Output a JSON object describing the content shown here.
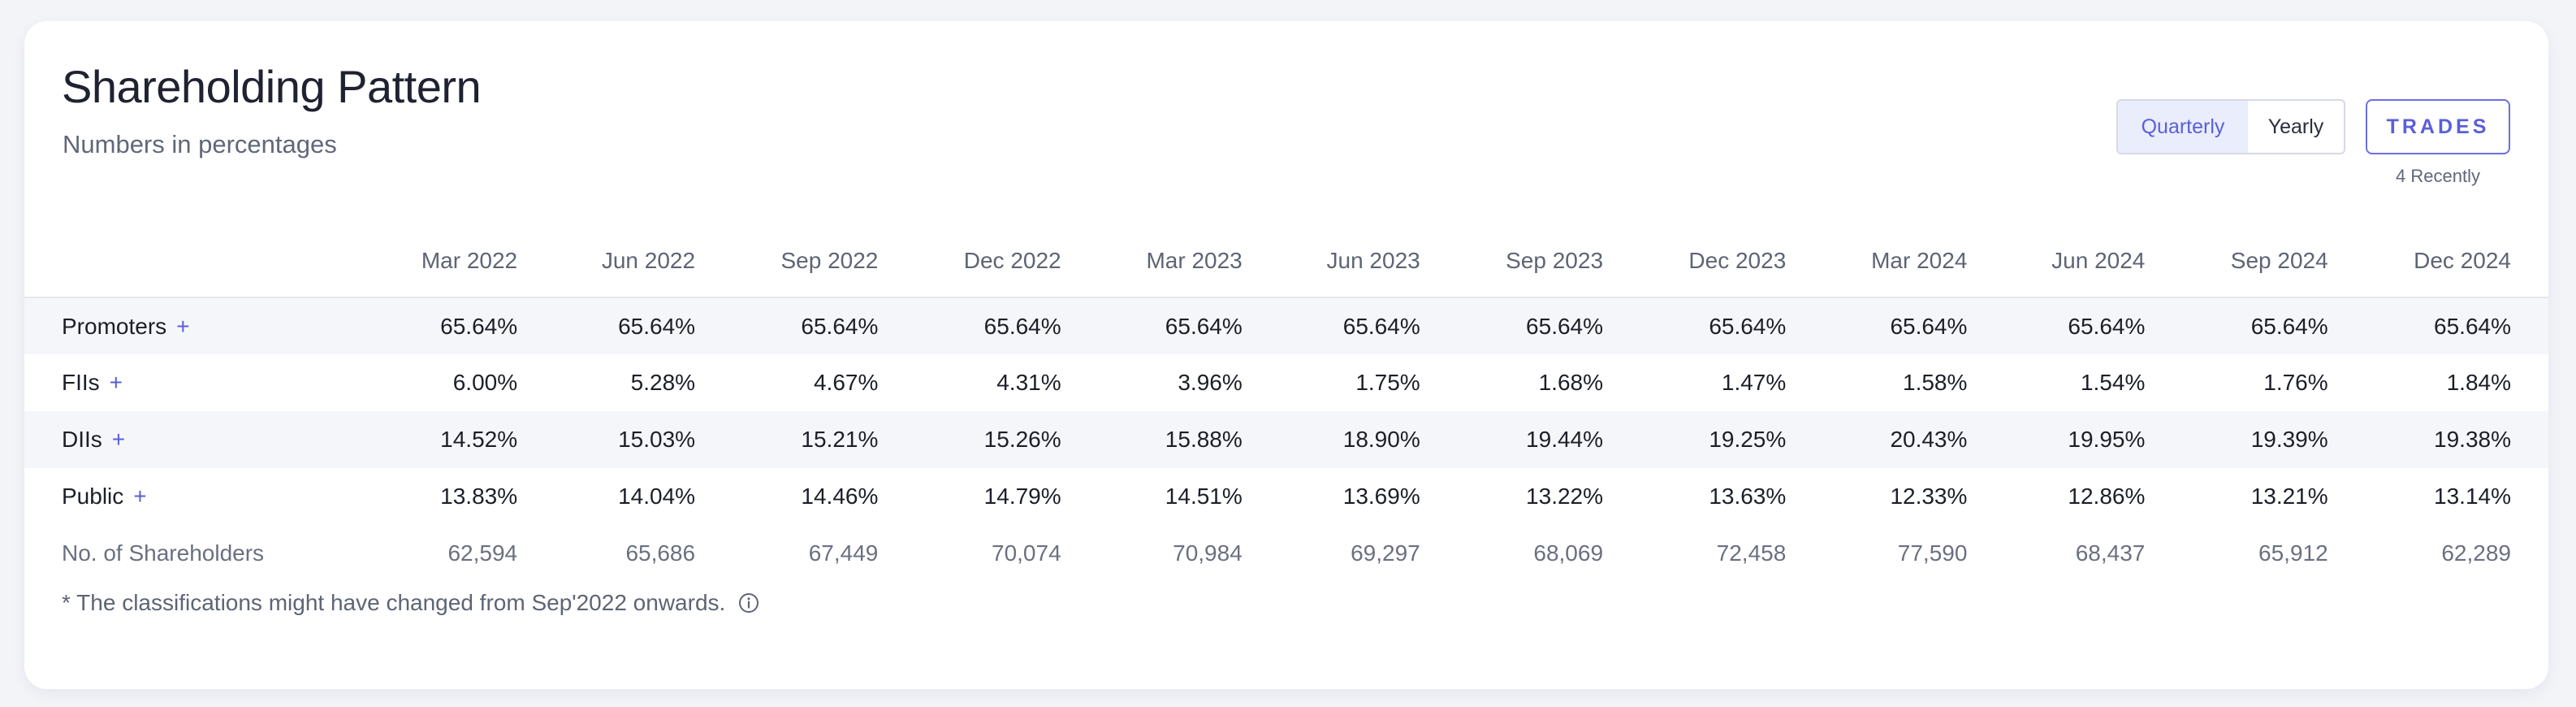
{
  "title": "Shareholding Pattern",
  "subtitle": "Numbers in percentages",
  "toggle": {
    "quarterly": "Quarterly",
    "yearly": "Yearly"
  },
  "trades": {
    "label": "TRADES",
    "note": "4 Recently"
  },
  "columns": [
    "Mar 2022",
    "Jun 2022",
    "Sep 2022",
    "Dec 2022",
    "Mar 2023",
    "Jun 2023",
    "Sep 2023",
    "Dec 2023",
    "Mar 2024",
    "Jun 2024",
    "Sep 2024",
    "Dec 2024"
  ],
  "rows": [
    {
      "label": "Promoters",
      "expandable": true,
      "values": [
        "65.64%",
        "65.64%",
        "65.64%",
        "65.64%",
        "65.64%",
        "65.64%",
        "65.64%",
        "65.64%",
        "65.64%",
        "65.64%",
        "65.64%",
        "65.64%"
      ]
    },
    {
      "label": "FIIs",
      "expandable": true,
      "values": [
        "6.00%",
        "5.28%",
        "4.67%",
        "4.31%",
        "3.96%",
        "1.75%",
        "1.68%",
        "1.47%",
        "1.58%",
        "1.54%",
        "1.76%",
        "1.84%"
      ]
    },
    {
      "label": "DIIs",
      "expandable": true,
      "values": [
        "14.52%",
        "15.03%",
        "15.21%",
        "15.26%",
        "15.88%",
        "18.90%",
        "19.44%",
        "19.25%",
        "20.43%",
        "19.95%",
        "19.39%",
        "19.38%"
      ]
    },
    {
      "label": "Public",
      "expandable": true,
      "values": [
        "13.83%",
        "14.04%",
        "14.46%",
        "14.79%",
        "14.51%",
        "13.69%",
        "13.22%",
        "13.63%",
        "12.33%",
        "12.86%",
        "13.21%",
        "13.14%"
      ]
    },
    {
      "label": "No. of Shareholders",
      "expandable": false,
      "values": [
        "62,594",
        "65,686",
        "67,449",
        "70,074",
        "70,984",
        "69,297",
        "68,069",
        "72,458",
        "77,590",
        "68,437",
        "65,912",
        "62,289"
      ]
    }
  ],
  "plus_symbol": "+",
  "footnote": "* The classifications might have changed from Sep'2022 onwards.",
  "colors": {
    "accent": "#5a5fd9",
    "row_alt": "#f5f6fa",
    "muted_text": "#606779"
  },
  "icons": {
    "footnote": "info-icon"
  }
}
